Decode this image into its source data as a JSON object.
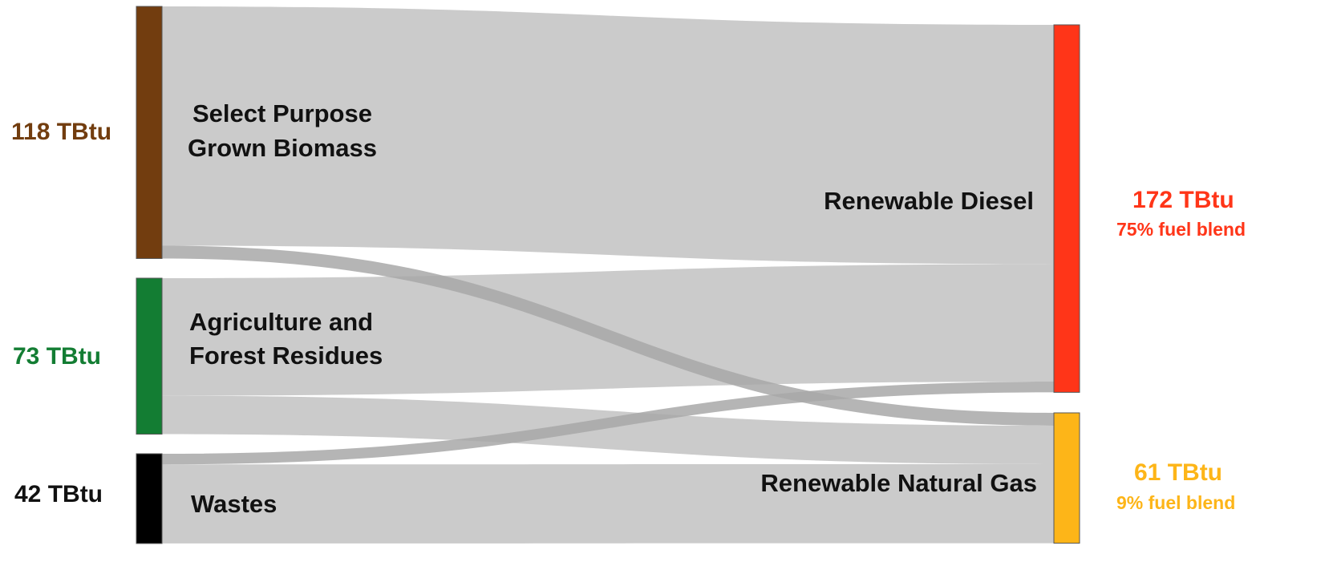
{
  "chart_data": {
    "type": "sankey",
    "units": "TBtu",
    "sources": [
      {
        "id": "biomass",
        "name_line1": "Select Purpose",
        "name_line2": "Grown Biomass",
        "value_label": "118 TBtu",
        "value": 118,
        "color": "#723D0F"
      },
      {
        "id": "residues",
        "name_line1": "Agriculture and",
        "name_line2": "Forest Residues",
        "value_label": "73 TBtu",
        "value": 73,
        "color": "#137D33"
      },
      {
        "id": "wastes",
        "name_line1": "Wastes",
        "name_line2": "",
        "value_label": "42 TBtu",
        "value": 42,
        "color": "#000000"
      }
    ],
    "targets": [
      {
        "id": "diesel",
        "name": "Renewable Diesel",
        "value_label": "172 TBtu",
        "blend_label": "75% fuel blend",
        "value": 172,
        "blend_pct": 75,
        "color": "#FF3518"
      },
      {
        "id": "rng",
        "name": "Renewable Natural Gas",
        "value_label": "61 TBtu",
        "blend_label": "9% fuel blend",
        "value": 61,
        "blend_pct": 9,
        "color": "#FDB518"
      }
    ],
    "flows": [
      {
        "from": "biomass",
        "to": "diesel",
        "value": 112
      },
      {
        "from": "biomass",
        "to": "rng",
        "value": 6
      },
      {
        "from": "residues",
        "to": "diesel",
        "value": 55
      },
      {
        "from": "residues",
        "to": "rng",
        "value": 18
      },
      {
        "from": "wastes",
        "to": "diesel",
        "value": 5
      },
      {
        "from": "wastes",
        "to": "rng",
        "value": 37
      }
    ],
    "link_color": "#CBCBCB",
    "link_highlight_color": "#A8A8A8"
  }
}
